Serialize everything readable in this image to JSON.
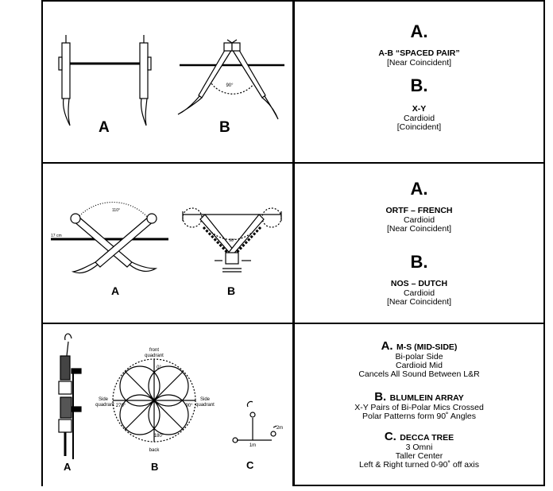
{
  "rows": [
    {
      "diagram_labels": [
        "A",
        "B"
      ],
      "diagram_annotations": {
        "angle_b": "90°"
      },
      "text": {
        "a_letter": "A.",
        "a_title": "A-B “SPACED PAIR”",
        "a_line1": "[Near Coincident]",
        "b_letter": "B.",
        "b_title": "X-Y",
        "b_line1": "Cardioid",
        "b_line2": "[Coincident]"
      }
    },
    {
      "diagram_labels": [
        "A",
        "B"
      ],
      "diagram_annotations": {
        "angle_a": "110°",
        "angle_b": "90°",
        "dist_a": "17 cm"
      },
      "text": {
        "a_letter": "A.",
        "a_title": "ORTF – FRENCH",
        "a_line1": "Cardioid",
        "a_line2": "[Near Coincident]",
        "b_letter": "B.",
        "b_title": "NOS – DUTCH",
        "b_line1": "Cardioid",
        "b_line2": "[Near Coincident]"
      }
    },
    {
      "diagram_labels": [
        "A",
        "B",
        "C"
      ],
      "diagram_annotations": {
        "front": "front",
        "front2": "quadrant",
        "back": "back",
        "side_left": "Side",
        "side_left2": "quadrant",
        "side_right": "Side",
        "side_right2": "quadrant",
        "deg_0": "0°",
        "deg_90": "90°",
        "deg_270": "270°",
        "deg_180": "180°",
        "c_dist": "1m",
        "c_dist2": "2m"
      },
      "text": {
        "a_letter": "A.",
        "a_title": "M-S (MID-SIDE)",
        "a_line1": "Bi-polar Side",
        "a_line2": "Cardioid Mid",
        "a_line3": "Cancels All Sound Between L&R",
        "b_letter": "B.",
        "b_title": "BLUMLEIN ARRAY",
        "b_line1": "X-Y Pairs of Bi-Polar Mics Crossed",
        "b_line2": "Polar Patterns form 90˚ Angles",
        "c_letter": "C.",
        "c_title": "DECCA TREE",
        "c_line1": "3 Omni",
        "c_line2": "Taller Center",
        "c_line3": "Left & Right turned 0-90˚ off axis"
      }
    }
  ]
}
